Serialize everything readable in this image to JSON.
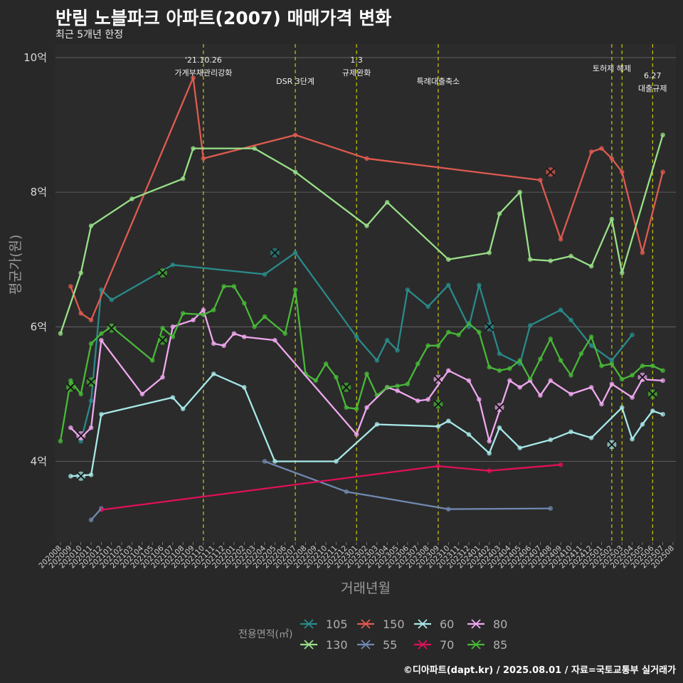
{
  "title": "반림 노블파크 아파트(2007) 매매가격 변화",
  "subtitle": "최근 5개년 한정",
  "credit": "©디아파트(dapt.kr) / 2025.08.01 / 자료=국토교통부 실거래가",
  "chart_data": {
    "type": "line",
    "xlabel": "거래년월",
    "ylabel": "평균가(원)",
    "x_ticks": [
      "202008",
      "202009",
      "202010",
      "202011",
      "202012",
      "202101",
      "202102",
      "202103",
      "202104",
      "202105",
      "202106",
      "202107",
      "202108",
      "202109",
      "202110",
      "202111",
      "202112",
      "202201",
      "202202",
      "202203",
      "202204",
      "202205",
      "202206",
      "202207",
      "202208",
      "202209",
      "202210",
      "202211",
      "202212",
      "202301",
      "202302",
      "202303",
      "202304",
      "202305",
      "202306",
      "202307",
      "202308",
      "202309",
      "202310",
      "202311",
      "202312",
      "202401",
      "202402",
      "202403",
      "202404",
      "202405",
      "202406",
      "202407",
      "202408",
      "202409",
      "202410",
      "202411",
      "202412",
      "202501",
      "202502",
      "202503",
      "202504",
      "202505",
      "202506",
      "202507",
      "202508"
    ],
    "y_ticks": [
      {
        "value": 4,
        "label": "4억"
      },
      {
        "value": 6,
        "label": "6억"
      },
      {
        "value": 8,
        "label": "8억"
      },
      {
        "value": 10,
        "label": "10억"
      }
    ],
    "y_unit": "억",
    "ylim": [
      2.8,
      10.2
    ],
    "grid": true,
    "legend_title": "전용면적(㎡)",
    "legend_position": "bottom",
    "policy_events": [
      {
        "x": "202110",
        "label_lines": [
          "'21.10.26",
          "가계부채관리강화"
        ]
      },
      {
        "x": "202207",
        "label_lines": [
          "DSR 3단계"
        ]
      },
      {
        "x": "202301",
        "label_lines": [
          "1.3",
          "규제완화"
        ]
      },
      {
        "x": "202309",
        "label_lines": [
          "특례대출축소"
        ]
      },
      {
        "x": "202502",
        "label_lines": [
          "토허제 해제"
        ]
      },
      {
        "x": "202503",
        "label_lines": []
      },
      {
        "x": "202506",
        "label_lines": [
          "6.27",
          "대출규제"
        ]
      }
    ],
    "series": [
      {
        "name": "105",
        "color": "#2a8a8a",
        "points": [
          [
            "202010",
            4.3
          ],
          [
            "202011",
            4.9
          ],
          [
            "202012",
            6.55
          ],
          [
            "202101",
            6.4
          ],
          [
            "202107",
            6.92
          ],
          [
            "202204",
            6.78
          ],
          [
            "202207",
            7.1
          ],
          [
            "202301",
            5.85
          ],
          [
            "202303",
            5.5
          ],
          [
            "202304",
            5.8
          ],
          [
            "202305",
            5.65
          ],
          [
            "202306",
            6.55
          ],
          [
            "202308",
            6.3
          ],
          [
            "202310",
            6.62
          ],
          [
            "202312",
            6.0
          ],
          [
            "202401",
            6.62
          ],
          [
            "202403",
            5.6
          ],
          [
            "202405",
            5.45
          ],
          [
            "202406",
            6.02
          ],
          [
            "202409",
            6.25
          ],
          [
            "202410",
            6.1
          ],
          [
            "202412",
            5.72
          ],
          [
            "202502",
            5.5
          ],
          [
            "202504",
            5.88
          ]
        ],
        "markers": [
          [
            "202205",
            7.1
          ],
          [
            "202402",
            6.0
          ]
        ]
      },
      {
        "name": "150",
        "color": "#e05a50",
        "points": [
          [
            "202009",
            6.6
          ],
          [
            "202010",
            6.2
          ],
          [
            "202011",
            6.1
          ],
          [
            "202109",
            9.7
          ],
          [
            "202110",
            8.5
          ],
          [
            "202207",
            8.85
          ],
          [
            "202302",
            8.5
          ],
          [
            "202407",
            8.18
          ],
          [
            "202409",
            7.3
          ],
          [
            "202412",
            8.6
          ],
          [
            "202501",
            8.65
          ],
          [
            "202502",
            8.5
          ],
          [
            "202503",
            8.3
          ],
          [
            "202505",
            7.1
          ],
          [
            "202507",
            8.3
          ]
        ],
        "markers": [
          [
            "202408",
            8.3
          ]
        ]
      },
      {
        "name": "60",
        "color": "#a8e8e8",
        "points": [
          [
            "202009",
            3.78
          ],
          [
            "202011",
            3.8
          ],
          [
            "202012",
            4.7
          ],
          [
            "202107",
            4.95
          ],
          [
            "202108",
            4.78
          ],
          [
            "202111",
            5.3
          ],
          [
            "202202",
            5.1
          ],
          [
            "202205",
            4.0
          ],
          [
            "202211",
            4.0
          ],
          [
            "202303",
            4.55
          ],
          [
            "202309",
            4.52
          ],
          [
            "202310",
            4.6
          ],
          [
            "202312",
            4.4
          ],
          [
            "202402",
            4.12
          ],
          [
            "202403",
            4.5
          ],
          [
            "202405",
            4.2
          ],
          [
            "202408",
            4.32
          ],
          [
            "202410",
            4.44
          ],
          [
            "202412",
            4.35
          ],
          [
            "202503",
            4.8
          ],
          [
            "202504",
            4.33
          ],
          [
            "202505",
            4.55
          ],
          [
            "202506",
            4.75
          ],
          [
            "202507",
            4.7
          ]
        ],
        "markers": [
          [
            "202010",
            3.78
          ],
          [
            "202502",
            4.25
          ]
        ]
      },
      {
        "name": "80",
        "color": "#f0a8f0",
        "points": [
          [
            "202009",
            4.5
          ],
          [
            "202010",
            4.35
          ],
          [
            "202011",
            4.5
          ],
          [
            "202012",
            5.8
          ],
          [
            "202104",
            5.0
          ],
          [
            "202106",
            5.25
          ],
          [
            "202107",
            6.0
          ],
          [
            "202109",
            6.1
          ],
          [
            "202110",
            6.25
          ],
          [
            "202111",
            5.75
          ],
          [
            "202112",
            5.72
          ],
          [
            "202201",
            5.9
          ],
          [
            "202202",
            5.85
          ],
          [
            "202205",
            5.8
          ],
          [
            "202301",
            4.4
          ],
          [
            "202302",
            4.8
          ],
          [
            "202304",
            5.1
          ],
          [
            "202305",
            5.05
          ],
          [
            "202307",
            4.9
          ],
          [
            "202308",
            4.92
          ],
          [
            "202310",
            5.35
          ],
          [
            "202312",
            5.2
          ],
          [
            "202401",
            4.92
          ],
          [
            "202402",
            4.3
          ],
          [
            "202404",
            5.2
          ],
          [
            "202405",
            5.1
          ],
          [
            "202406",
            5.2
          ],
          [
            "202407",
            4.98
          ],
          [
            "202408",
            5.2
          ],
          [
            "202410",
            5.0
          ],
          [
            "202412",
            5.1
          ],
          [
            "202501",
            4.85
          ],
          [
            "202502",
            5.15
          ],
          [
            "202504",
            4.95
          ],
          [
            "202505",
            5.22
          ],
          [
            "202507",
            5.2
          ]
        ],
        "markers": [
          [
            "202010",
            4.38
          ],
          [
            "202309",
            5.22
          ],
          [
            "202403",
            4.8
          ],
          [
            "202505",
            5.25
          ]
        ]
      },
      {
        "name": "130",
        "color": "#98e088",
        "points": [
          [
            "202008",
            5.9
          ],
          [
            "202010",
            6.8
          ],
          [
            "202011",
            7.5
          ],
          [
            "202103",
            7.9
          ],
          [
            "202108",
            8.2
          ],
          [
            "202109",
            8.65
          ],
          [
            "202203",
            8.65
          ],
          [
            "202207",
            8.3
          ],
          [
            "202302",
            7.5
          ],
          [
            "202304",
            7.85
          ],
          [
            "202310",
            7.0
          ],
          [
            "202402",
            7.1
          ],
          [
            "202403",
            7.68
          ],
          [
            "202405",
            8.0
          ],
          [
            "202406",
            7.0
          ],
          [
            "202408",
            6.98
          ],
          [
            "202410",
            7.05
          ],
          [
            "202412",
            6.9
          ],
          [
            "202502",
            7.6
          ],
          [
            "202503",
            6.8
          ],
          [
            "202507",
            8.85
          ]
        ],
        "markers": []
      },
      {
        "name": "55",
        "color": "#7088b0",
        "points": [
          [
            "202204",
            4.0
          ],
          [
            "202212",
            3.55
          ],
          [
            "202310",
            3.29
          ],
          [
            "202408",
            3.3
          ]
        ],
        "markers": [],
        "segments": [
          [
            [
              "202011",
              3.13
            ],
            [
              "202012",
              3.3
            ]
          ]
        ]
      },
      {
        "name": "70",
        "color": "#e0105a",
        "points": [
          [
            "202012",
            3.28
          ],
          [
            "202309",
            3.93
          ],
          [
            "202402",
            3.86
          ],
          [
            "202409",
            3.95
          ]
        ],
        "markers": []
      },
      {
        "name": "85",
        "color": "#48b838",
        "points": [
          [
            "202008",
            4.3
          ],
          [
            "202009",
            5.2
          ],
          [
            "202010",
            5.0
          ],
          [
            "202011",
            5.75
          ],
          [
            "202012",
            5.9
          ],
          [
            "202101",
            6.0
          ],
          [
            "202105",
            5.5
          ],
          [
            "202106",
            5.98
          ],
          [
            "202107",
            5.85
          ],
          [
            "202108",
            6.2
          ],
          [
            "202110",
            6.18
          ],
          [
            "202111",
            6.25
          ],
          [
            "202112",
            6.6
          ],
          [
            "202201",
            6.6
          ],
          [
            "202202",
            6.35
          ],
          [
            "202203",
            6.0
          ],
          [
            "202204",
            6.15
          ],
          [
            "202206",
            5.9
          ],
          [
            "202207",
            6.55
          ],
          [
            "202208",
            5.3
          ],
          [
            "202209",
            5.2
          ],
          [
            "202210",
            5.45
          ],
          [
            "202211",
            5.25
          ],
          [
            "202212",
            4.8
          ],
          [
            "202301",
            4.78
          ],
          [
            "202302",
            5.3
          ],
          [
            "202303",
            4.98
          ],
          [
            "202304",
            5.1
          ],
          [
            "202305",
            5.12
          ],
          [
            "202306",
            5.15
          ],
          [
            "202307",
            5.45
          ],
          [
            "202308",
            5.72
          ],
          [
            "202309",
            5.72
          ],
          [
            "202310",
            5.92
          ],
          [
            "202311",
            5.88
          ],
          [
            "202312",
            6.05
          ],
          [
            "202401",
            5.92
          ],
          [
            "202402",
            5.4
          ],
          [
            "202403",
            5.35
          ],
          [
            "202404",
            5.38
          ],
          [
            "202405",
            5.5
          ],
          [
            "202406",
            5.22
          ],
          [
            "202407",
            5.52
          ],
          [
            "202408",
            5.82
          ],
          [
            "202409",
            5.5
          ],
          [
            "202410",
            5.28
          ],
          [
            "202411",
            5.6
          ],
          [
            "202412",
            5.85
          ],
          [
            "202501",
            5.42
          ],
          [
            "202502",
            5.45
          ],
          [
            "202503",
            5.22
          ],
          [
            "202504",
            5.28
          ],
          [
            "202505",
            5.42
          ],
          [
            "202506",
            5.42
          ],
          [
            "202507",
            5.35
          ]
        ],
        "markers": [
          [
            "202009",
            5.1
          ],
          [
            "202011",
            5.18
          ],
          [
            "202101",
            5.98
          ],
          [
            "202106",
            5.8
          ],
          [
            "202106",
            6.8
          ],
          [
            "202212",
            5.1
          ],
          [
            "202309",
            4.85
          ],
          [
            "202506",
            5.0
          ]
        ]
      }
    ]
  }
}
